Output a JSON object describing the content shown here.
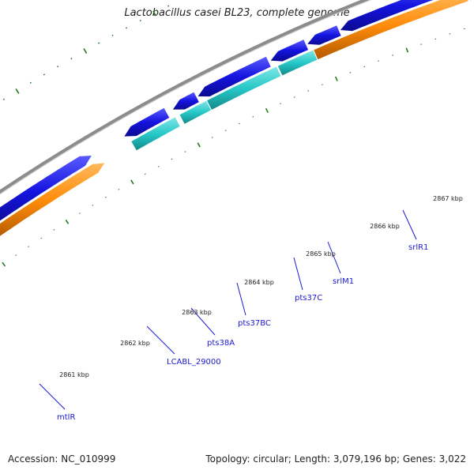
{
  "title": "Lactobacillus casei BL23, complete genome",
  "footer": {
    "accession": "Accession: NC_010999",
    "topology": "Topology: circular; Length: 3,079,196 bp; Genes: 3,022"
  },
  "colors": {
    "backbone": "#8c8c8c",
    "forward_cds": "#1414e0",
    "reverse_cds_cyan": "#27c8c8",
    "reverse_cds_orange": "#ff8c0a",
    "gc_ticks": "#1f7a1f",
    "label_text": "#1a1ad0"
  },
  "kbp_labels": [
    "2861 kbp",
    "2862 kbp",
    "2863 kbp",
    "2864 kbp",
    "2865 kbp",
    "2866 kbp",
    "2867 kbp"
  ],
  "gene_labels": [
    "mtlR",
    "LCABL_29000",
    "pts38A",
    "pts37BC",
    "pts37C",
    "srlM1",
    "srlR1"
  ]
}
